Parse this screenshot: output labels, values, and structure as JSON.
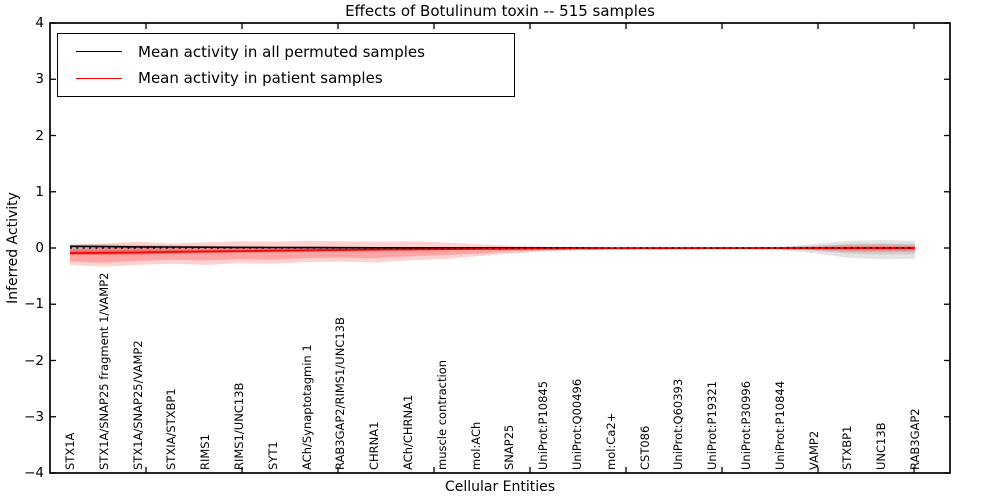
{
  "chart_data": {
    "type": "line",
    "title": "Effects of Botulinum toxin -- 515 samples",
    "xlabel": "Cellular Entities",
    "ylabel": "Inferred Activity",
    "ylim": [
      -4,
      4
    ],
    "ytick_labels": [
      "4",
      "3",
      "2",
      "1",
      "0",
      "−1",
      "−2",
      "−3",
      "−4"
    ],
    "grid": false,
    "legend": {
      "position": "upper left",
      "entries": [
        {
          "label": "Mean activity in all permuted samples",
          "color": "#000000"
        },
        {
          "label": "Mean activity in patient samples",
          "color": "#ff0000"
        }
      ]
    },
    "categories": [
      "STX1A",
      "STX1A/SNAP25 fragment 1/VAMP2",
      "STX1A/SNAP25/VAMP2",
      "STXIA/STXBP1",
      "RIMS1",
      "RIMS1/UNC13B",
      "SYT1",
      "ACh/Synaptotagmin 1",
      "RAB3GAP2/RIMS1/UNC13B",
      "CHRNA1",
      "ACh/CHRNA1",
      "muscle contraction",
      "mol:ACh",
      "SNAP25",
      "UniProt:P10845",
      "UniProt:Q00496",
      "mol:Ca2+",
      "CST086",
      "UniProt:Q60393",
      "UniProt:P19321",
      "UniProt:P30996",
      "UniProt:P10844",
      "VAMP2",
      "STXBP1",
      "UNC13B",
      "RAB3GAP2"
    ],
    "series": [
      {
        "name": "Mean activity in all permuted samples",
        "color": "#000000",
        "style": "solid",
        "width": 1.6,
        "values": [
          0.03,
          0.025,
          0.02,
          0.017,
          0.014,
          0.011,
          0.009,
          0.007,
          0.005,
          0.004,
          0.003,
          0.002,
          0.002,
          0.001,
          0.001,
          0.001,
          0,
          0,
          0,
          0,
          0,
          0,
          0,
          0,
          0,
          0
        ]
      },
      {
        "name": "Mean activity in patient samples",
        "color": "#ff0000",
        "style": "solid",
        "width": 1.8,
        "values": [
          -0.09,
          -0.085,
          -0.08,
          -0.07,
          -0.062,
          -0.055,
          -0.048,
          -0.042,
          -0.036,
          -0.031,
          -0.026,
          -0.022,
          -0.018,
          -0.014,
          -0.011,
          -0.009,
          -0.007,
          -0.006,
          -0.005,
          -0.004,
          -0.004,
          -0.003,
          -0.003,
          -0.003,
          -0.003,
          -0.003
        ]
      },
      {
        "name": "zero reference",
        "color": "#000000",
        "style": "dotted",
        "width": 1.6,
        "values": [
          0,
          0,
          0,
          0,
          0,
          0,
          0,
          0,
          0,
          0,
          0,
          0,
          0,
          0,
          0,
          0,
          0,
          0,
          0,
          0,
          0,
          0,
          0,
          0,
          0,
          0
        ]
      }
    ],
    "bands": [
      {
        "name": "permuted samples spread outer",
        "color": "rgba(130,130,130,0.22)",
        "upper": [
          0.08,
          0.07,
          0.06,
          0.05,
          0.043,
          0.037,
          0.032,
          0.027,
          0.023,
          0.02,
          0.017,
          0.015,
          0.013,
          0.012,
          0.011,
          0.01,
          0.01,
          0.01,
          0.01,
          0.011,
          0.013,
          0.025,
          0.07,
          0.13,
          0.14,
          0.13
        ],
        "lower": [
          -0.12,
          -0.1,
          -0.085,
          -0.07,
          -0.06,
          -0.052,
          -0.045,
          -0.039,
          -0.034,
          -0.03,
          -0.026,
          -0.023,
          -0.02,
          -0.017,
          -0.015,
          -0.013,
          -0.012,
          -0.011,
          -0.011,
          -0.012,
          -0.015,
          -0.03,
          -0.09,
          -0.17,
          -0.2,
          -0.19
        ]
      },
      {
        "name": "permuted samples spread inner",
        "color": "rgba(130,130,130,0.2)",
        "upper": [
          0.05,
          0.045,
          0.038,
          0.032,
          0.027,
          0.023,
          0.02,
          0.017,
          0.014,
          0.012,
          0.011,
          0.01,
          0.009,
          0.008,
          0.007,
          0.007,
          0.007,
          0.007,
          0.007,
          0.008,
          0.009,
          0.015,
          0.04,
          0.075,
          0.08,
          0.075
        ],
        "lower": [
          -0.075,
          -0.063,
          -0.053,
          -0.044,
          -0.038,
          -0.033,
          -0.028,
          -0.024,
          -0.021,
          -0.019,
          -0.016,
          -0.014,
          -0.012,
          -0.011,
          -0.009,
          -0.008,
          -0.008,
          -0.008,
          -0.008,
          -0.009,
          -0.01,
          -0.018,
          -0.05,
          -0.1,
          -0.115,
          -0.11
        ]
      },
      {
        "name": "patient samples spread outer",
        "color": "rgba(255,45,45,0.22)",
        "upper": [
          0.05,
          0.08,
          0.11,
          0.08,
          0.1,
          0.12,
          0.11,
          0.13,
          0.12,
          0.11,
          0.12,
          0.1,
          0.07,
          0.04,
          0.025,
          0.015,
          0.01,
          0.008,
          0.007,
          0.007,
          0.008,
          0.012,
          0.03,
          0.06,
          0.065,
          0.06
        ],
        "lower": [
          -0.3,
          -0.33,
          -0.3,
          -0.28,
          -0.3,
          -0.27,
          -0.28,
          -0.25,
          -0.24,
          -0.26,
          -0.22,
          -0.2,
          -0.15,
          -0.1,
          -0.06,
          -0.04,
          -0.028,
          -0.022,
          -0.018,
          -0.015,
          -0.015,
          -0.02,
          -0.04,
          -0.07,
          -0.075,
          -0.07
        ]
      },
      {
        "name": "patient samples spread middle",
        "color": "rgba(255,45,45,0.28)",
        "upper": [
          -0.02,
          -0.005,
          0.015,
          -0.003,
          0.012,
          0.022,
          0.017,
          0.027,
          0.022,
          0.017,
          0.022,
          0.015,
          0.006,
          0,
          -0.003,
          -0.003,
          -0.002,
          -0.002,
          -0.001,
          -0.001,
          -0.001,
          0.001,
          0.012,
          0.03,
          0.033,
          0.03
        ],
        "lower": [
          -0.24,
          -0.26,
          -0.23,
          -0.21,
          -0.22,
          -0.2,
          -0.21,
          -0.18,
          -0.17,
          -0.18,
          -0.15,
          -0.13,
          -0.1,
          -0.065,
          -0.04,
          -0.026,
          -0.018,
          -0.014,
          -0.011,
          -0.009,
          -0.009,
          -0.012,
          -0.025,
          -0.045,
          -0.05,
          -0.045
        ]
      },
      {
        "name": "patient samples spread core",
        "color": "rgba(255,30,30,0.3)",
        "upper": [
          -0.05,
          -0.045,
          -0.04,
          -0.035,
          -0.03,
          -0.026,
          -0.022,
          -0.019,
          -0.016,
          -0.014,
          -0.011,
          -0.009,
          -0.007,
          -0.005,
          -0.004,
          -0.003,
          -0.002,
          -0.002,
          -0.001,
          -0.001,
          -0.001,
          0,
          0.005,
          0.015,
          0.017,
          0.015
        ],
        "lower": [
          -0.13,
          -0.125,
          -0.12,
          -0.105,
          -0.094,
          -0.084,
          -0.074,
          -0.065,
          -0.056,
          -0.048,
          -0.041,
          -0.035,
          -0.029,
          -0.023,
          -0.018,
          -0.015,
          -0.012,
          -0.01,
          -0.009,
          -0.007,
          -0.007,
          -0.006,
          -0.011,
          -0.021,
          -0.023,
          -0.021
        ]
      }
    ]
  }
}
